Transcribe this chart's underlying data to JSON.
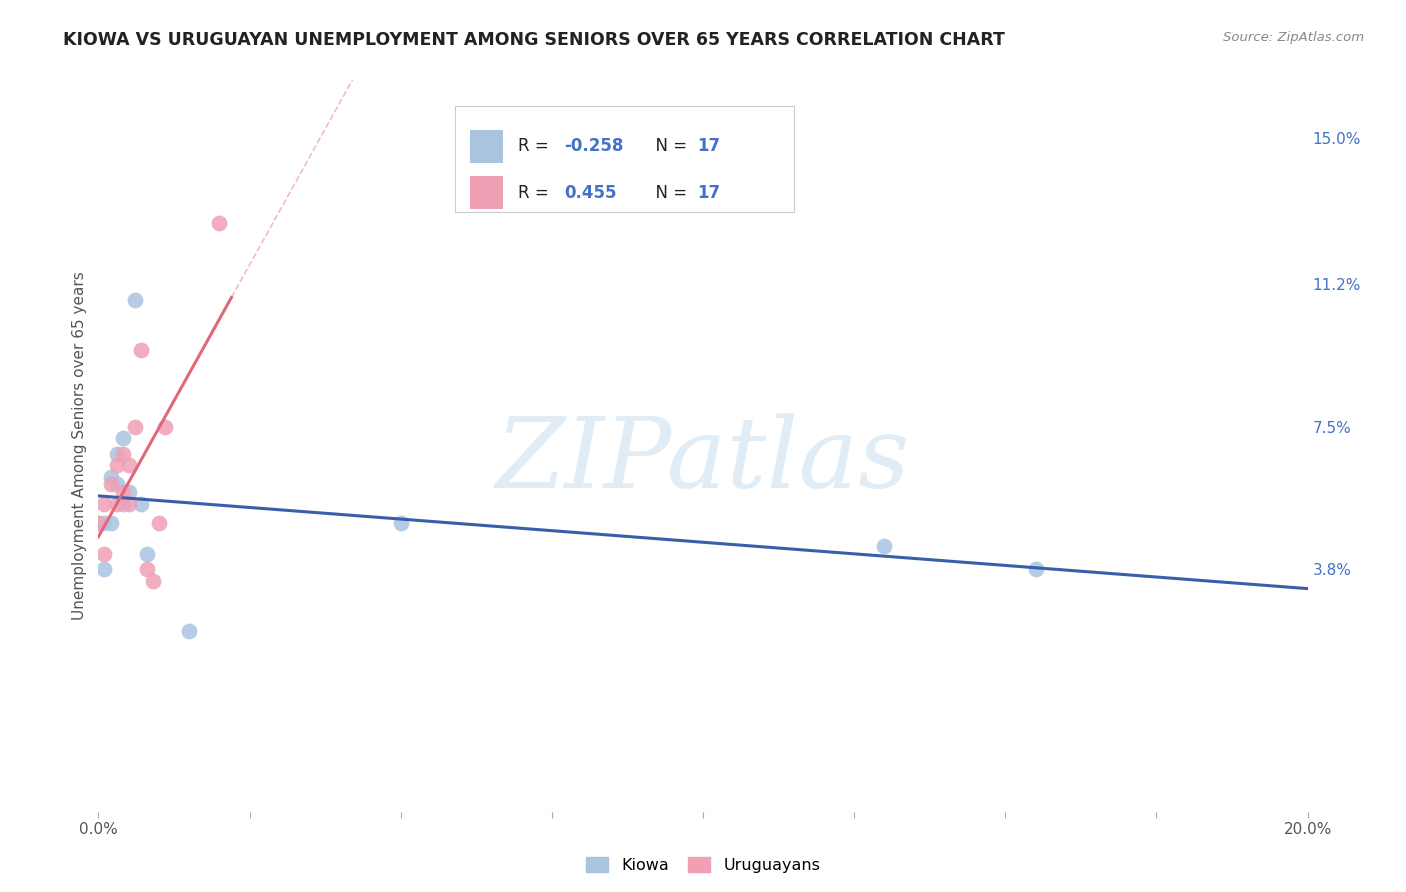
{
  "title": "KIOWA VS URUGUAYAN UNEMPLOYMENT AMONG SENIORS OVER 65 YEARS CORRELATION CHART",
  "source": "Source: ZipAtlas.com",
  "ylabel": "Unemployment Among Seniors over 65 years",
  "xlim": [
    0.0,
    0.2
  ],
  "ylim": [
    -0.025,
    0.165
  ],
  "xticks": [
    0.0,
    0.025,
    0.05,
    0.075,
    0.1,
    0.125,
    0.15,
    0.175,
    0.2
  ],
  "right_yticks": [
    0.038,
    0.075,
    0.112,
    0.15
  ],
  "right_yticklabels": [
    "3.8%",
    "7.5%",
    "11.2%",
    "15.0%"
  ],
  "grid_color": "#dddddd",
  "background_color": "#ffffff",
  "watermark_text": "ZIPatlas",
  "kiowa_color": "#aac4e0",
  "uruguayan_color": "#f0a0b5",
  "kiowa_line_color": "#3a5faa",
  "uruguayan_line_color": "#e06878",
  "kiowa_R": -0.258,
  "kiowa_N": 17,
  "uruguayan_R": 0.455,
  "uruguayan_N": 17,
  "kiowa_x": [
    0.0,
    0.001,
    0.001,
    0.002,
    0.002,
    0.003,
    0.003,
    0.004,
    0.004,
    0.005,
    0.006,
    0.007,
    0.008,
    0.015,
    0.05,
    0.13,
    0.155
  ],
  "kiowa_y": [
    0.05,
    0.05,
    0.038,
    0.05,
    0.062,
    0.068,
    0.06,
    0.072,
    0.055,
    0.058,
    0.108,
    0.055,
    0.042,
    0.022,
    0.05,
    0.044,
    0.038
  ],
  "uruguayan_x": [
    0.0,
    0.001,
    0.001,
    0.002,
    0.003,
    0.003,
    0.004,
    0.004,
    0.005,
    0.005,
    0.006,
    0.007,
    0.008,
    0.009,
    0.01,
    0.011,
    0.02
  ],
  "uruguayan_y": [
    0.05,
    0.055,
    0.042,
    0.06,
    0.055,
    0.065,
    0.058,
    0.068,
    0.055,
    0.065,
    0.075,
    0.095,
    0.038,
    0.035,
    0.05,
    0.075,
    0.128
  ]
}
